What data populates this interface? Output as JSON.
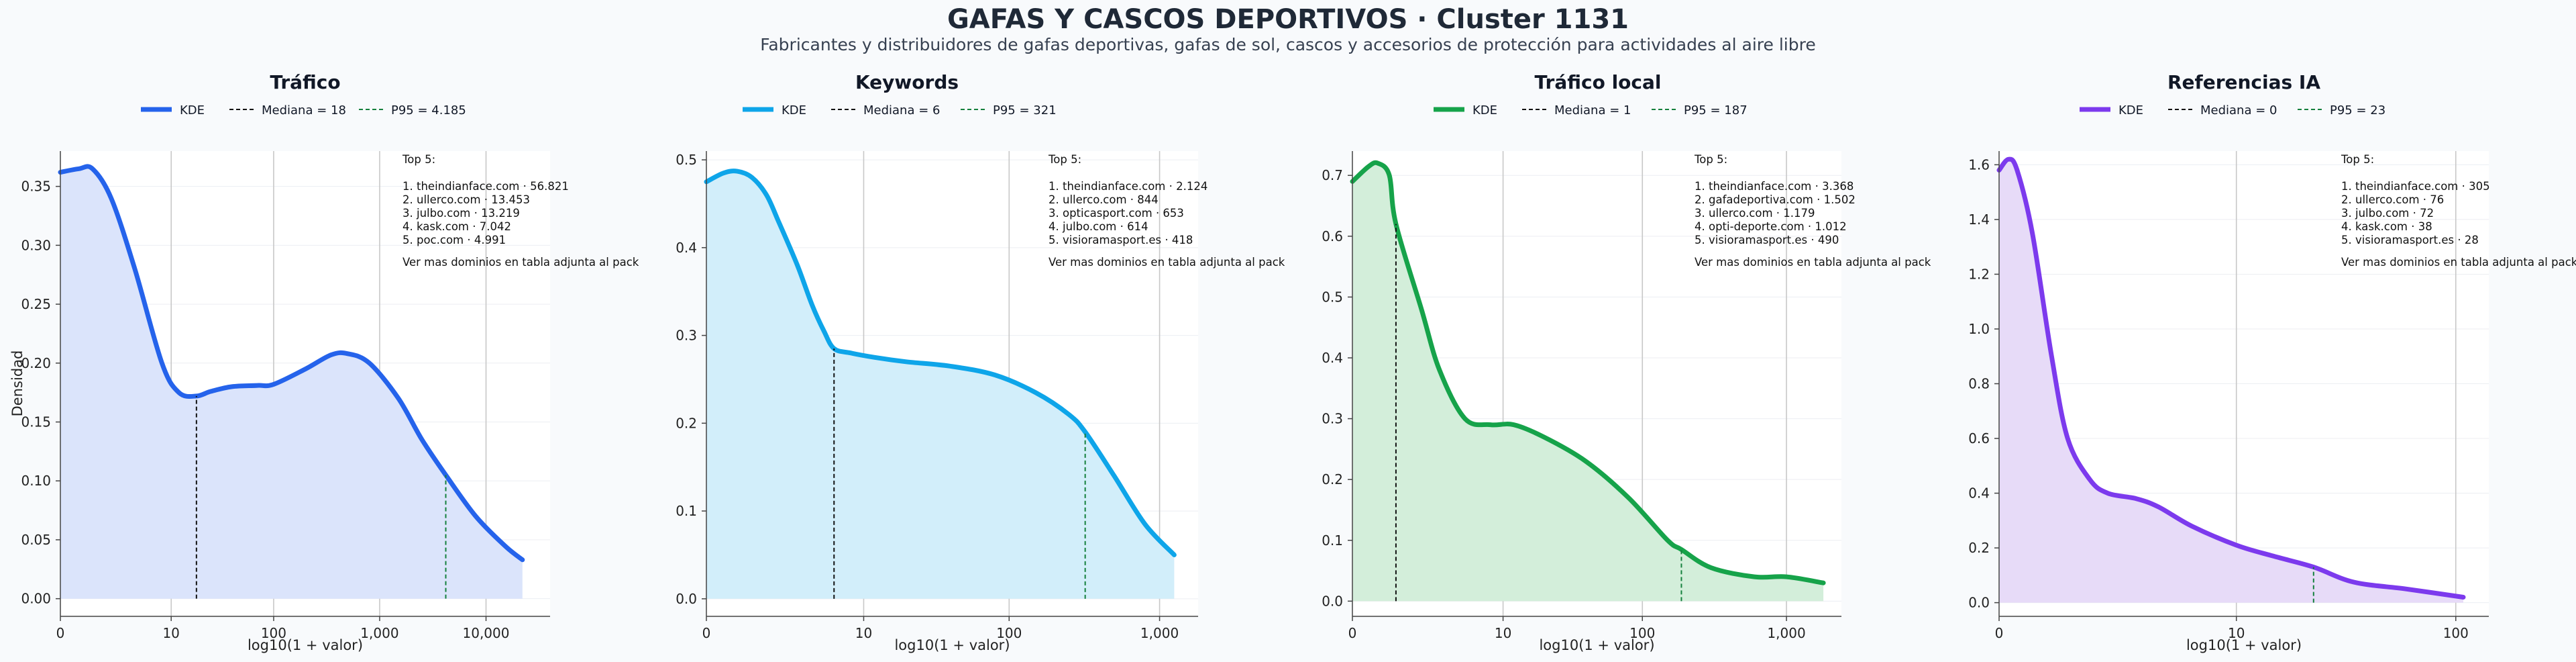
{
  "title": "GAFAS Y CASCOS DEPORTIVOS · Cluster 1131",
  "subtitle": "Fabricantes y distribuidores de gafas deportivas, gafas de sol, cascos y accesorios de protección para actividades al aire libre",
  "legend_kde": "KDE",
  "xlabel": "log10(1 + valor)",
  "ylabel": "Densidad",
  "colors": {
    "median_line": "#111111",
    "p95_line": "#15803d",
    "grid": "#c8c8c8"
  },
  "chart_data": [
    {
      "type": "area",
      "title": "Tráfico",
      "color": "#2563eb",
      "fill": "#dbe4fb",
      "median_label": "Mediana = 18",
      "p95_label": "P95 = 4.185",
      "median": 18,
      "p95": 4185,
      "xscale": "log1p",
      "x_max_plot": 40000,
      "data_max": 22000,
      "xticks": [
        0,
        10,
        100,
        1000,
        10000
      ],
      "xtick_labels": [
        "0",
        "10",
        "100",
        "1,000",
        "10,000"
      ],
      "ylim": [
        -0.015,
        0.38
      ],
      "yticks": [
        0,
        0.05,
        0.1,
        0.15,
        0.2,
        0.25,
        0.3,
        0.35
      ],
      "ytick_labels": [
        "0.00",
        "0.05",
        "0.10",
        "0.15",
        "0.20",
        "0.25",
        "0.30",
        "0.35"
      ],
      "show_ylabel": true,
      "curve": [
        [
          0,
          0.362
        ],
        [
          0.5,
          0.365
        ],
        [
          1,
          0.365
        ],
        [
          2,
          0.34
        ],
        [
          4,
          0.28
        ],
        [
          8,
          0.2
        ],
        [
          12,
          0.175
        ],
        [
          18,
          0.172
        ],
        [
          25,
          0.176
        ],
        [
          40,
          0.18
        ],
        [
          70,
          0.181
        ],
        [
          100,
          0.182
        ],
        [
          200,
          0.195
        ],
        [
          350,
          0.207
        ],
        [
          500,
          0.208
        ],
        [
          800,
          0.2
        ],
        [
          1500,
          0.17
        ],
        [
          2500,
          0.135
        ],
        [
          4185,
          0.105
        ],
        [
          8000,
          0.07
        ],
        [
          15000,
          0.045
        ],
        [
          22000,
          0.033
        ]
      ],
      "top5_header": "Top 5:",
      "top5": [
        "1. theindianface.com · 56.821",
        "2. ullerco.com · 13.453",
        "3. julbo.com · 13.219",
        "4. kask.com · 7.042",
        "5. poc.com · 4.991"
      ],
      "footer_note": "Ver mas dominios en tabla adjunta al pack"
    },
    {
      "type": "area",
      "title": "Keywords",
      "color": "#0ea5e9",
      "fill": "#d2eefa",
      "median_label": "Mediana = 6",
      "p95_label": "P95 = 321",
      "median": 6,
      "p95": 321,
      "xscale": "log1p",
      "x_max_plot": 1800,
      "data_max": 1250,
      "xticks": [
        0,
        10,
        100,
        1000
      ],
      "xtick_labels": [
        "0",
        "10",
        "100",
        "1,000"
      ],
      "ylim": [
        -0.02,
        0.51
      ],
      "yticks": [
        0,
        0.1,
        0.2,
        0.3,
        0.4,
        0.5
      ],
      "ytick_labels": [
        "0.0",
        "0.1",
        "0.2",
        "0.3",
        "0.4",
        "0.5"
      ],
      "show_ylabel": false,
      "curve": [
        [
          0,
          0.475
        ],
        [
          0.3,
          0.485
        ],
        [
          0.6,
          0.487
        ],
        [
          1,
          0.48
        ],
        [
          1.5,
          0.46
        ],
        [
          2,
          0.43
        ],
        [
          3,
          0.38
        ],
        [
          4,
          0.335
        ],
        [
          5,
          0.305
        ],
        [
          6,
          0.285
        ],
        [
          8,
          0.28
        ],
        [
          12,
          0.275
        ],
        [
          20,
          0.27
        ],
        [
          40,
          0.265
        ],
        [
          80,
          0.255
        ],
        [
          150,
          0.235
        ],
        [
          250,
          0.21
        ],
        [
          321,
          0.19
        ],
        [
          500,
          0.14
        ],
        [
          800,
          0.085
        ],
        [
          1250,
          0.05
        ]
      ],
      "top5_header": "Top 5:",
      "top5": [
        "1. theindianface.com · 2.124",
        "2. ullerco.com · 844",
        "3. opticasport.com · 653",
        "4. julbo.com · 614",
        "5. visioramasport.es · 418"
      ],
      "footer_note": "Ver mas dominios en tabla adjunta al pack"
    },
    {
      "type": "area",
      "title": "Tráfico local",
      "color": "#16a34a",
      "fill": "#d3eeda",
      "median_label": "Mediana = 1",
      "p95_label": "P95 = 187",
      "median": 1,
      "p95": 187,
      "xscale": "log1p",
      "x_max_plot": 2400,
      "data_max": 1800,
      "xticks": [
        0,
        10,
        100,
        1000
      ],
      "xtick_labels": [
        "0",
        "10",
        "100",
        "1,000"
      ],
      "ylim": [
        -0.025,
        0.74
      ],
      "yticks": [
        0,
        0.1,
        0.2,
        0.3,
        0.4,
        0.5,
        0.6,
        0.7
      ],
      "ytick_labels": [
        "0.0",
        "0.1",
        "0.2",
        "0.3",
        "0.4",
        "0.5",
        "0.6",
        "0.7"
      ],
      "show_ylabel": false,
      "curve": [
        [
          0,
          0.69
        ],
        [
          0.3,
          0.715
        ],
        [
          0.5,
          0.72
        ],
        [
          0.8,
          0.7
        ],
        [
          1,
          0.62
        ],
        [
          2,
          0.48
        ],
        [
          3,
          0.38
        ],
        [
          5,
          0.3
        ],
        [
          8,
          0.29
        ],
        [
          12,
          0.29
        ],
        [
          20,
          0.27
        ],
        [
          40,
          0.23
        ],
        [
          80,
          0.17
        ],
        [
          150,
          0.1
        ],
        [
          187,
          0.085
        ],
        [
          300,
          0.055
        ],
        [
          600,
          0.04
        ],
        [
          1000,
          0.04
        ],
        [
          1800,
          0.03
        ]
      ],
      "top5_header": "Top 5:",
      "top5": [
        "1. theindianface.com · 3.368",
        "2. gafadeportiva.com · 1.502",
        "3. ullerco.com · 1.179",
        "4. opti-deporte.com · 1.012",
        "5. visioramasport.es · 490"
      ],
      "footer_note": "Ver mas dominios en tabla adjunta al pack"
    },
    {
      "type": "area",
      "title": "Referencias IA",
      "color": "#7c3aed",
      "fill": "#e7dbf8",
      "median_label": "Mediana = 0",
      "p95_label": "P95 = 23",
      "median": 0,
      "p95": 23,
      "xscale": "log1p",
      "x_max_plot": 140,
      "data_max": 108,
      "xticks": [
        0,
        10,
        100
      ],
      "xtick_labels": [
        "0",
        "10",
        "100"
      ],
      "ylim": [
        -0.05,
        1.65
      ],
      "yticks": [
        0,
        0.2,
        0.4,
        0.6,
        0.8,
        1.0,
        1.2,
        1.4,
        1.6
      ],
      "ytick_labels": [
        "0.0",
        "0.2",
        "0.4",
        "0.6",
        "0.8",
        "1.0",
        "1.2",
        "1.4",
        "1.6"
      ],
      "show_ylabel": false,
      "curve": [
        [
          0,
          1.58
        ],
        [
          0.1,
          1.62
        ],
        [
          0.2,
          1.58
        ],
        [
          0.4,
          1.35
        ],
        [
          0.7,
          0.9
        ],
        [
          1,
          0.6
        ],
        [
          1.5,
          0.45
        ],
        [
          2,
          0.4
        ],
        [
          3,
          0.38
        ],
        [
          4,
          0.35
        ],
        [
          6,
          0.28
        ],
        [
          10,
          0.21
        ],
        [
          15,
          0.17
        ],
        [
          23,
          0.13
        ],
        [
          35,
          0.075
        ],
        [
          60,
          0.05
        ],
        [
          108,
          0.02
        ]
      ],
      "top5_header": "Top 5:",
      "top5": [
        "1. theindianface.com · 305",
        "2. ullerco.com · 76",
        "3. julbo.com · 72",
        "4. kask.com · 38",
        "5. visioramasport.es · 28"
      ],
      "footer_note": "Ver mas dominios en tabla adjunta al pack"
    }
  ]
}
